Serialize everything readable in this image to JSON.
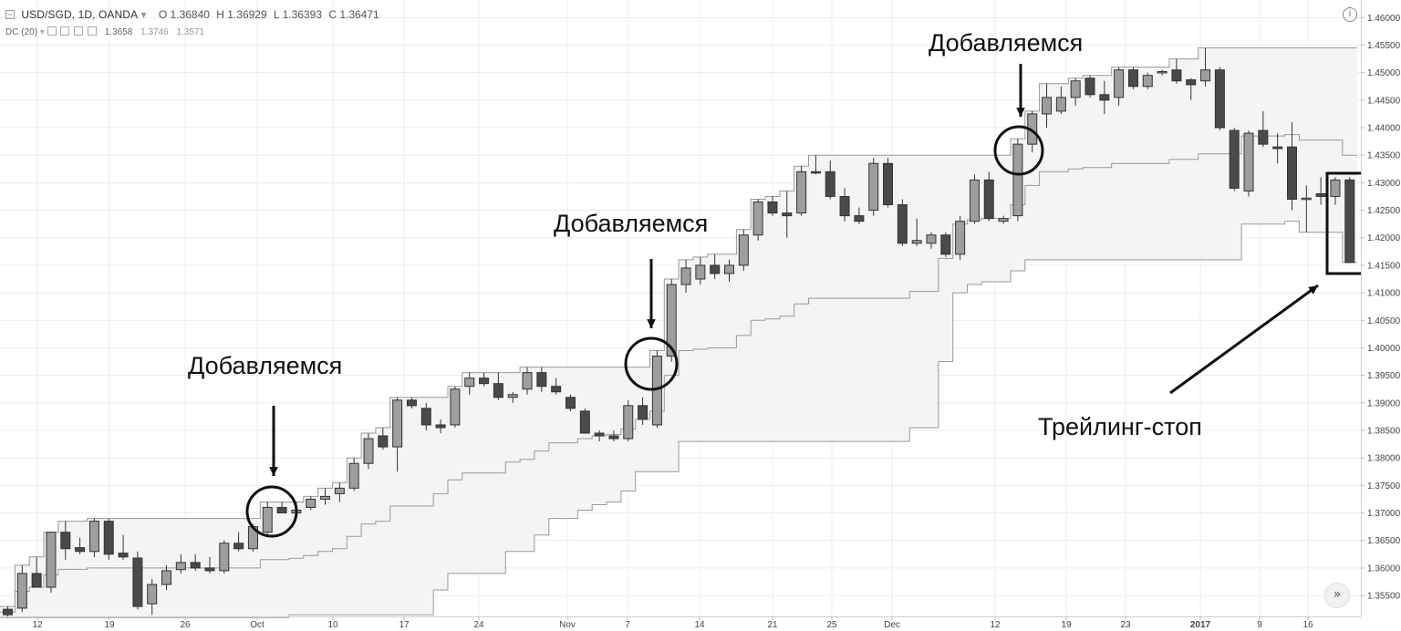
{
  "header": {
    "symbol": "USD/SGD, 1D, OANDA",
    "dropdown_glyph": "▾",
    "open": "O 1.36840",
    "high": "H 1.36929",
    "low": "L 1.36393",
    "close": "C 1.36471"
  },
  "indicator": {
    "name": "DC (20)",
    "upper": "1.3658",
    "middle": "1.3746",
    "lower": "1.3571"
  },
  "annotations": {
    "add_1": "Добавляемся",
    "add_2": "Добавляемся",
    "add_3": "Добавляемся",
    "trailing_stop": "Трейлинг-стоп"
  },
  "icons": {
    "info": "i",
    "scroll_right": "»"
  },
  "colors": {
    "up_candle": "#9e9e9e",
    "down_candle": "#4a4a4a",
    "channel_line": "#9a9a9a",
    "channel_fill": "#f4f4f4",
    "grid": "#ececec"
  },
  "chart_data": {
    "type": "candlestick",
    "title": "USD/SGD, 1D, OANDA",
    "indicator": "Donchian Channel (20)",
    "x_ticks": [
      "12",
      "19",
      "26",
      "Oct",
      "10",
      "17",
      "24",
      "Nov",
      "7",
      "14",
      "21",
      "25",
      "Dec",
      "12",
      "19",
      "23",
      "2017",
      "9",
      "16"
    ],
    "y_ticks": [
      "1.35500",
      "1.36000",
      "1.36500",
      "1.37000",
      "1.37500",
      "1.38000",
      "1.38500",
      "1.39000",
      "1.39500",
      "1.40000",
      "1.40500",
      "1.41000",
      "1.41500",
      "1.42000",
      "1.42500",
      "1.43000",
      "1.43500",
      "1.44000",
      "1.44500",
      "1.45000",
      "1.45500",
      "1.46000"
    ],
    "ylim": [
      1.3512,
      1.4632
    ],
    "grid": true,
    "candles": [
      {
        "o": 1.3525,
        "h": 1.353,
        "l": 1.351,
        "c": 1.3515
      },
      {
        "o": 1.3527,
        "h": 1.3605,
        "l": 1.352,
        "c": 1.359
      },
      {
        "o": 1.359,
        "h": 1.362,
        "l": 1.3565,
        "c": 1.3565
      },
      {
        "o": 1.3565,
        "h": 1.3665,
        "l": 1.3555,
        "c": 1.3665
      },
      {
        "o": 1.3665,
        "h": 1.3685,
        "l": 1.3615,
        "c": 1.3635
      },
      {
        "o": 1.3637,
        "h": 1.3655,
        "l": 1.3625,
        "c": 1.363
      },
      {
        "o": 1.363,
        "h": 1.369,
        "l": 1.362,
        "c": 1.3685
      },
      {
        "o": 1.3685,
        "h": 1.369,
        "l": 1.3615,
        "c": 1.3625
      },
      {
        "o": 1.3627,
        "h": 1.366,
        "l": 1.3615,
        "c": 1.362
      },
      {
        "o": 1.3618,
        "h": 1.363,
        "l": 1.3525,
        "c": 1.353
      },
      {
        "o": 1.3535,
        "h": 1.358,
        "l": 1.3515,
        "c": 1.357
      },
      {
        "o": 1.357,
        "h": 1.3605,
        "l": 1.356,
        "c": 1.3595
      },
      {
        "o": 1.3597,
        "h": 1.3625,
        "l": 1.359,
        "c": 1.361
      },
      {
        "o": 1.361,
        "h": 1.3625,
        "l": 1.3595,
        "c": 1.36
      },
      {
        "o": 1.36,
        "h": 1.362,
        "l": 1.359,
        "c": 1.3595
      },
      {
        "o": 1.3595,
        "h": 1.365,
        "l": 1.359,
        "c": 1.3645
      },
      {
        "o": 1.3645,
        "h": 1.3665,
        "l": 1.363,
        "c": 1.3635
      },
      {
        "o": 1.3635,
        "h": 1.368,
        "l": 1.363,
        "c": 1.3675
      },
      {
        "o": 1.3665,
        "h": 1.372,
        "l": 1.366,
        "c": 1.371
      },
      {
        "o": 1.371,
        "h": 1.372,
        "l": 1.37,
        "c": 1.37
      },
      {
        "o": 1.37,
        "h": 1.372,
        "l": 1.369,
        "c": 1.3705
      },
      {
        "o": 1.371,
        "h": 1.373,
        "l": 1.3705,
        "c": 1.3725
      },
      {
        "o": 1.3725,
        "h": 1.3745,
        "l": 1.3715,
        "c": 1.373
      },
      {
        "o": 1.3735,
        "h": 1.3755,
        "l": 1.372,
        "c": 1.3745
      },
      {
        "o": 1.3745,
        "h": 1.38,
        "l": 1.374,
        "c": 1.379
      },
      {
        "o": 1.379,
        "h": 1.3845,
        "l": 1.378,
        "c": 1.3835
      },
      {
        "o": 1.384,
        "h": 1.3855,
        "l": 1.3815,
        "c": 1.382
      },
      {
        "o": 1.382,
        "h": 1.391,
        "l": 1.3775,
        "c": 1.3905
      },
      {
        "o": 1.3905,
        "h": 1.391,
        "l": 1.389,
        "c": 1.3895
      },
      {
        "o": 1.389,
        "h": 1.39,
        "l": 1.385,
        "c": 1.386
      },
      {
        "o": 1.386,
        "h": 1.387,
        "l": 1.3845,
        "c": 1.3855
      },
      {
        "o": 1.386,
        "h": 1.393,
        "l": 1.3855,
        "c": 1.3925
      },
      {
        "o": 1.393,
        "h": 1.3955,
        "l": 1.3915,
        "c": 1.3945
      },
      {
        "o": 1.3945,
        "h": 1.3955,
        "l": 1.393,
        "c": 1.3935
      },
      {
        "o": 1.3935,
        "h": 1.3955,
        "l": 1.3905,
        "c": 1.391
      },
      {
        "o": 1.391,
        "h": 1.392,
        "l": 1.39,
        "c": 1.3915
      },
      {
        "o": 1.3925,
        "h": 1.3965,
        "l": 1.3915,
        "c": 1.3955
      },
      {
        "o": 1.3955,
        "h": 1.3965,
        "l": 1.392,
        "c": 1.393
      },
      {
        "o": 1.393,
        "h": 1.3945,
        "l": 1.3915,
        "c": 1.392
      },
      {
        "o": 1.391,
        "h": 1.3915,
        "l": 1.3885,
        "c": 1.389
      },
      {
        "o": 1.3885,
        "h": 1.389,
        "l": 1.3845,
        "c": 1.3845
      },
      {
        "o": 1.3845,
        "h": 1.385,
        "l": 1.383,
        "c": 1.384
      },
      {
        "o": 1.384,
        "h": 1.385,
        "l": 1.383,
        "c": 1.3835
      },
      {
        "o": 1.3835,
        "h": 1.3905,
        "l": 1.383,
        "c": 1.3895
      },
      {
        "o": 1.3895,
        "h": 1.391,
        "l": 1.386,
        "c": 1.387
      },
      {
        "o": 1.386,
        "h": 1.3995,
        "l": 1.3855,
        "c": 1.3985
      },
      {
        "o": 1.3985,
        "h": 1.4125,
        "l": 1.3975,
        "c": 1.4115
      },
      {
        "o": 1.4115,
        "h": 1.416,
        "l": 1.41,
        "c": 1.4145
      },
      {
        "o": 1.4125,
        "h": 1.4165,
        "l": 1.4115,
        "c": 1.415
      },
      {
        "o": 1.415,
        "h": 1.417,
        "l": 1.4125,
        "c": 1.4135
      },
      {
        "o": 1.4135,
        "h": 1.416,
        "l": 1.412,
        "c": 1.415
      },
      {
        "o": 1.415,
        "h": 1.4215,
        "l": 1.414,
        "c": 1.4205
      },
      {
        "o": 1.4205,
        "h": 1.427,
        "l": 1.4195,
        "c": 1.4265
      },
      {
        "o": 1.4265,
        "h": 1.4275,
        "l": 1.424,
        "c": 1.4245
      },
      {
        "o": 1.4245,
        "h": 1.4285,
        "l": 1.42,
        "c": 1.424
      },
      {
        "o": 1.4245,
        "h": 1.433,
        "l": 1.424,
        "c": 1.432
      },
      {
        "o": 1.432,
        "h": 1.435,
        "l": 1.4315,
        "c": 1.4318
      },
      {
        "o": 1.432,
        "h": 1.434,
        "l": 1.427,
        "c": 1.4275
      },
      {
        "o": 1.4275,
        "h": 1.429,
        "l": 1.423,
        "c": 1.424
      },
      {
        "o": 1.424,
        "h": 1.4255,
        "l": 1.4225,
        "c": 1.423
      },
      {
        "o": 1.425,
        "h": 1.4345,
        "l": 1.424,
        "c": 1.4335
      },
      {
        "o": 1.4335,
        "h": 1.4345,
        "l": 1.4255,
        "c": 1.426
      },
      {
        "o": 1.426,
        "h": 1.427,
        "l": 1.4185,
        "c": 1.419
      },
      {
        "o": 1.419,
        "h": 1.4235,
        "l": 1.4185,
        "c": 1.4195
      },
      {
        "o": 1.419,
        "h": 1.421,
        "l": 1.418,
        "c": 1.4205
      },
      {
        "o": 1.4205,
        "h": 1.421,
        "l": 1.4165,
        "c": 1.417
      },
      {
        "o": 1.417,
        "h": 1.424,
        "l": 1.416,
        "c": 1.423
      },
      {
        "o": 1.423,
        "h": 1.4315,
        "l": 1.4225,
        "c": 1.4305
      },
      {
        "o": 1.4305,
        "h": 1.432,
        "l": 1.423,
        "c": 1.4235
      },
      {
        "o": 1.423,
        "h": 1.424,
        "l": 1.4225,
        "c": 1.4235
      },
      {
        "o": 1.424,
        "h": 1.438,
        "l": 1.423,
        "c": 1.437
      },
      {
        "o": 1.437,
        "h": 1.443,
        "l": 1.4355,
        "c": 1.4425
      },
      {
        "o": 1.4425,
        "h": 1.448,
        "l": 1.44,
        "c": 1.4455
      },
      {
        "o": 1.443,
        "h": 1.4475,
        "l": 1.4425,
        "c": 1.4455
      },
      {
        "o": 1.4455,
        "h": 1.449,
        "l": 1.444,
        "c": 1.4485
      },
      {
        "o": 1.449,
        "h": 1.4495,
        "l": 1.4455,
        "c": 1.446
      },
      {
        "o": 1.446,
        "h": 1.4485,
        "l": 1.4425,
        "c": 1.445
      },
      {
        "o": 1.4455,
        "h": 1.451,
        "l": 1.444,
        "c": 1.4505
      },
      {
        "o": 1.4505,
        "h": 1.451,
        "l": 1.447,
        "c": 1.4475
      },
      {
        "o": 1.4475,
        "h": 1.45,
        "l": 1.447,
        "c": 1.4495
      },
      {
        "o": 1.45,
        "h": 1.4505,
        "l": 1.4495,
        "c": 1.4502
      },
      {
        "o": 1.4505,
        "h": 1.4525,
        "l": 1.448,
        "c": 1.4485
      },
      {
        "o": 1.4487,
        "h": 1.449,
        "l": 1.445,
        "c": 1.4478
      },
      {
        "o": 1.4485,
        "h": 1.4545,
        "l": 1.4475,
        "c": 1.4505
      },
      {
        "o": 1.4505,
        "h": 1.451,
        "l": 1.4395,
        "c": 1.44
      },
      {
        "o": 1.4395,
        "h": 1.44,
        "l": 1.4285,
        "c": 1.429
      },
      {
        "o": 1.4285,
        "h": 1.4395,
        "l": 1.4275,
        "c": 1.439
      },
      {
        "o": 1.4395,
        "h": 1.443,
        "l": 1.4365,
        "c": 1.437
      },
      {
        "o": 1.4365,
        "h": 1.439,
        "l": 1.4335,
        "c": 1.4362
      },
      {
        "o": 1.4365,
        "h": 1.441,
        "l": 1.425,
        "c": 1.427
      },
      {
        "o": 1.427,
        "h": 1.4295,
        "l": 1.421,
        "c": 1.4272
      },
      {
        "o": 1.428,
        "h": 1.431,
        "l": 1.426,
        "c": 1.4275
      },
      {
        "o": 1.4275,
        "h": 1.431,
        "l": 1.426,
        "c": 1.4305
      },
      {
        "o": 1.4305,
        "h": 1.431,
        "l": 1.4155,
        "c": 1.4155
      }
    ]
  }
}
